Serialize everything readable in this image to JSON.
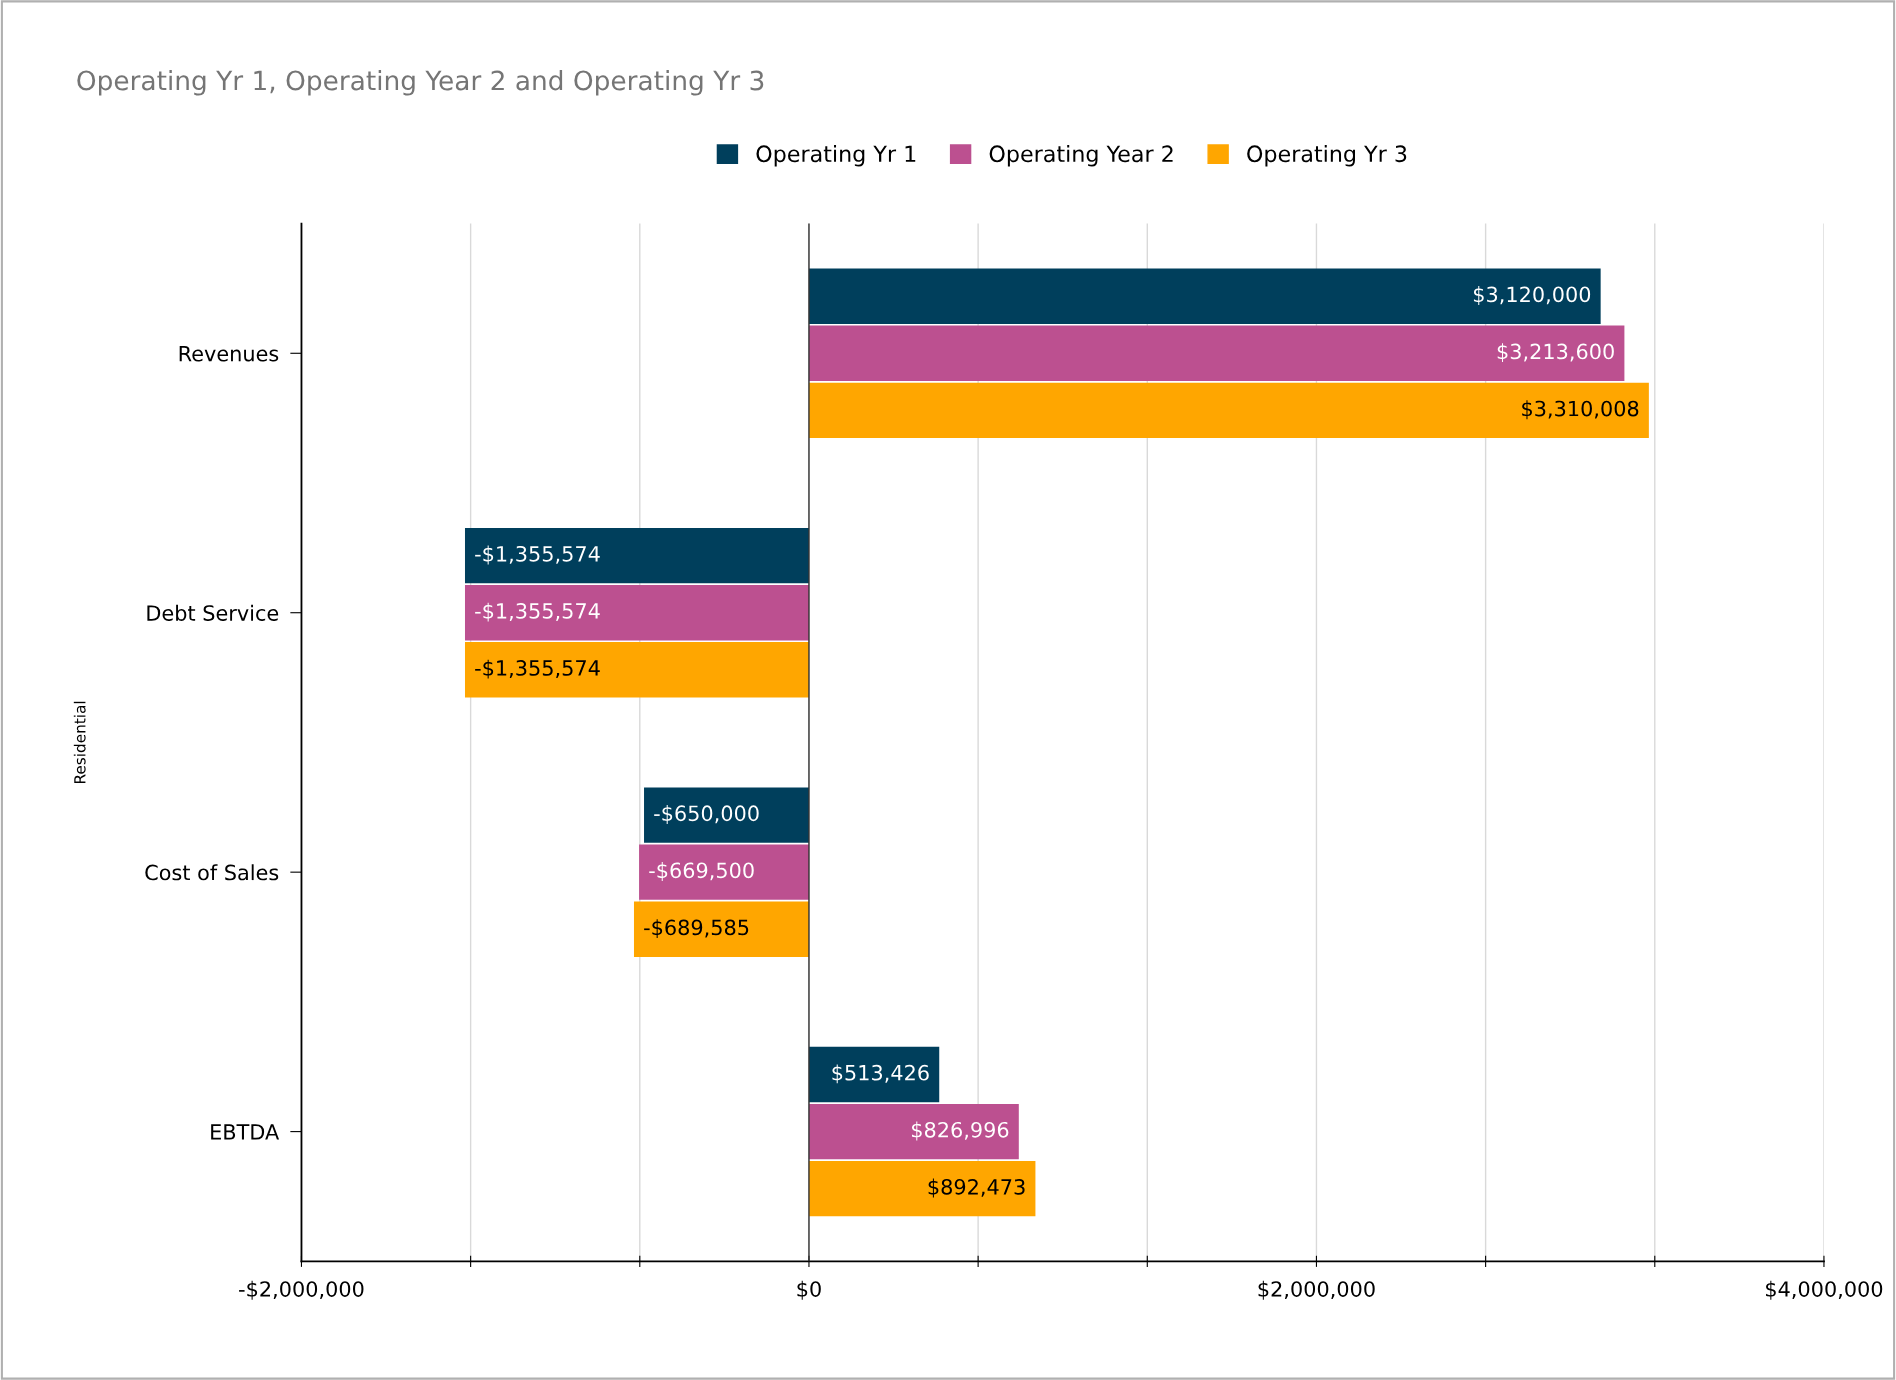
{
  "chart_data": {
    "type": "bar",
    "orientation": "horizontal",
    "title": "Operating Yr 1, Operating Year 2 and Operating Yr 3",
    "ylabel": "Residential",
    "categories": [
      "Revenues",
      "Debt Service",
      "Cost of Sales",
      "EBTDA"
    ],
    "series": [
      {
        "name": "Operating Yr 1",
        "color": "#003f5c",
        "values": [
          3120000,
          -1355574,
          -650000,
          513426
        ],
        "value_labels": [
          "$3,120,000",
          "-$1,355,574",
          "-$650,000",
          "$513,426"
        ]
      },
      {
        "name": "Operating Year 2",
        "color": "#bc5090",
        "values": [
          3213600,
          -1355574,
          -669500,
          826996
        ],
        "value_labels": [
          "$3,213,600",
          "-$1,355,574",
          "-$669,500",
          "$826,996"
        ]
      },
      {
        "name": "Operating Yr 3",
        "color": "#ffa600",
        "values": [
          3310008,
          -1355574,
          -689585,
          892473
        ],
        "value_labels": [
          "$3,310,008",
          "-$1,355,574",
          "-$689,585",
          "$892,473"
        ]
      }
    ],
    "xlim": [
      -2000000,
      4000000
    ],
    "xticks": [
      {
        "value": -2000000,
        "label": "-$2,000,000"
      },
      {
        "value": -1333333,
        "label": null
      },
      {
        "value": -666667,
        "label": null
      },
      {
        "value": 0,
        "label": "$0"
      },
      {
        "value": 666667,
        "label": null
      },
      {
        "value": 1333333,
        "label": null
      },
      {
        "value": 2000000,
        "label": "$2,000,000"
      },
      {
        "value": 2666667,
        "label": null
      },
      {
        "value": 3333333,
        "label": null
      },
      {
        "value": 4000000,
        "label": "$4,000,000"
      }
    ],
    "grid": "x",
    "legend": "top"
  }
}
